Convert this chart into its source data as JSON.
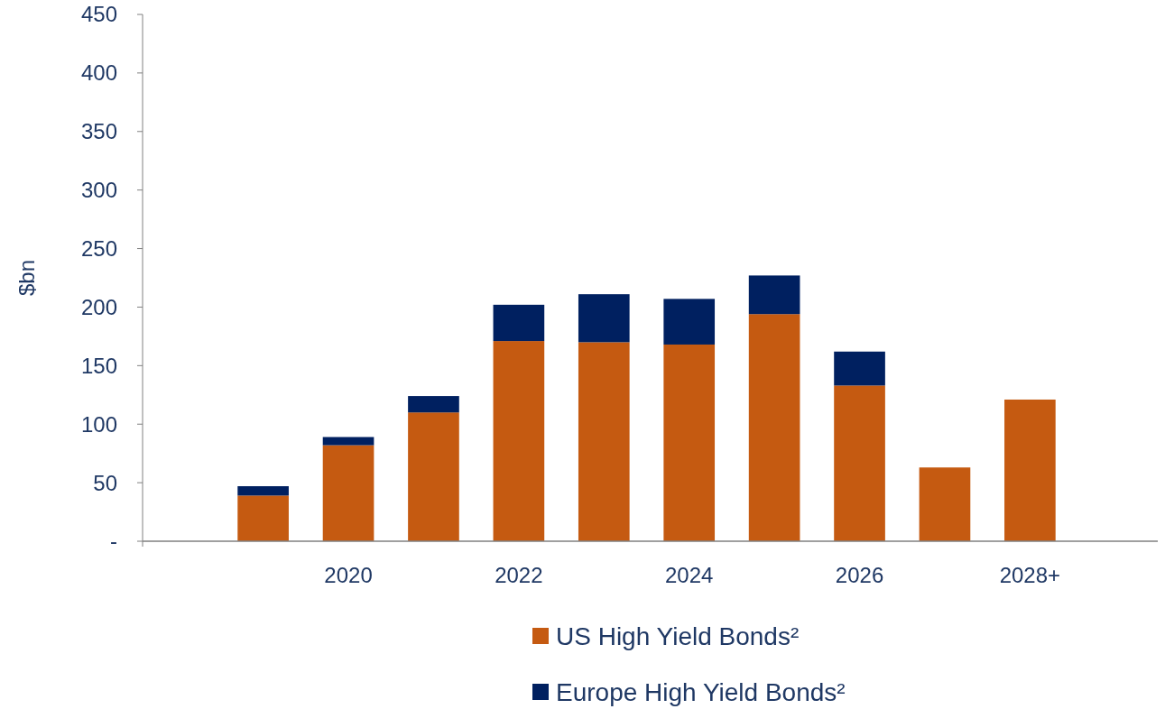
{
  "chart_data": {
    "type": "bar",
    "stacked": true,
    "ylabel": "$bn",
    "categories": [
      null,
      null,
      "2020",
      null,
      "2022",
      null,
      "2024",
      null,
      "2026",
      null,
      "2028+",
      null
    ],
    "series": [
      {
        "name": "US  High Yield Bonds²",
        "color": "#c55a11",
        "values": [
          null,
          39,
          82,
          110,
          171,
          170,
          168,
          194,
          133,
          63,
          121,
          null
        ]
      },
      {
        "name": "Europe High Yield Bonds²",
        "color": "#002060",
        "values": [
          null,
          8,
          7,
          14,
          31,
          41,
          39,
          33,
          29,
          null,
          null,
          null
        ]
      }
    ],
    "ylim": [
      0,
      450
    ],
    "yticks": [
      {
        "value": 0,
        "label": "-"
      },
      50,
      100,
      150,
      200,
      250,
      300,
      350,
      400,
      450
    ],
    "grid": false,
    "legend": "bottom"
  }
}
